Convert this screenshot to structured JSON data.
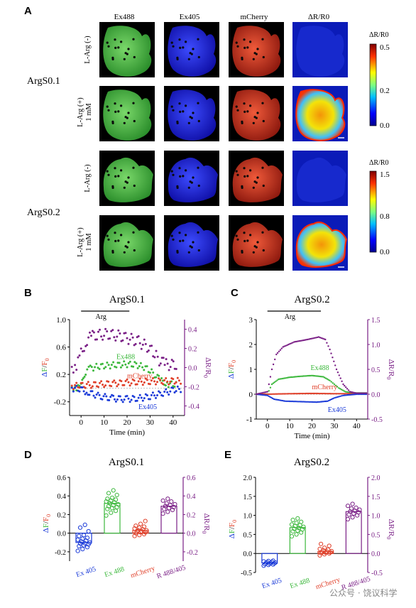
{
  "panel_labels": {
    "A": "A",
    "B": "B",
    "C": "C",
    "D": "D",
    "E": "E"
  },
  "panel_a": {
    "column_headers": [
      "Ex488",
      "Ex405",
      "mCherry",
      "ΔR/R0"
    ],
    "group1": {
      "name": "ArgS0.1",
      "row1_label": "L-Arg (-)",
      "row2_label_line1": "L-Arg (+)",
      "row2_label_line2": "1 mM",
      "colorbar_title": "ΔR/R0",
      "colorbar_ticks": [
        "0.5",
        "0.2",
        "0.0"
      ]
    },
    "group2": {
      "name": "ArgS0.2",
      "row1_label": "L-Arg (-)",
      "row2_label_line1": "L-Arg (+)",
      "row2_label_line2": "1 mM",
      "colorbar_title": "ΔR/R0",
      "colorbar_ticks": [
        "1.5",
        "0.8",
        "0.0"
      ]
    },
    "channel_colors": {
      "Ex488": "#3fb53a",
      "Ex405": "#1f2ee0",
      "mCherry": "#d8301e",
      "ratio": "#1a2bd0"
    }
  },
  "colors": {
    "green": "#3cb83c",
    "blue": "#1a3ad8",
    "red": "#e0402a",
    "purple": "#7a1f86",
    "black": "#000000"
  },
  "chart_data": [
    {
      "panel": "B",
      "type": "scatter",
      "title": "ArgS0.1",
      "xlabel": "Time (min)",
      "ylabel_left": "ΔF/F0",
      "ylabel_right": "ΔR/R0",
      "xlim": [
        -5,
        45
      ],
      "ylim_left": [
        -0.4,
        1.0
      ],
      "ylim_right": [
        -0.5,
        0.5
      ],
      "x_ticks": [
        0,
        10,
        20,
        30,
        40
      ],
      "y_ticks_left": [
        -0.2,
        0.2,
        0.6,
        1.0
      ],
      "y_ticks_right": [
        -0.4,
        -0.2,
        0.0,
        0.2,
        0.4
      ],
      "stimulus": {
        "label": "Arg",
        "start": 0,
        "end": 21
      },
      "series": [
        {
          "name": "Ex488",
          "axis": "left",
          "color": "green",
          "points": [
            [
              -4,
              0.01
            ],
            [
              -2,
              0.0
            ],
            [
              0,
              0.02
            ],
            [
              1,
              0.15
            ],
            [
              2,
              0.24
            ],
            [
              4,
              0.29
            ],
            [
              8,
              0.32
            ],
            [
              12,
              0.33
            ],
            [
              16,
              0.34
            ],
            [
              20,
              0.35
            ],
            [
              24,
              0.34
            ],
            [
              28,
              0.3
            ],
            [
              32,
              0.2
            ],
            [
              35,
              0.1
            ],
            [
              38,
              0.06
            ],
            [
              42,
              0.05
            ]
          ]
        },
        {
          "name": "mCherry",
          "axis": "left",
          "color": "red",
          "points": [
            [
              -4,
              0.03
            ],
            [
              0,
              0.04
            ],
            [
              5,
              0.05
            ],
            [
              10,
              0.06
            ],
            [
              15,
              0.07
            ],
            [
              20,
              0.08
            ],
            [
              25,
              0.09
            ],
            [
              30,
              0.1
            ],
            [
              35,
              0.1
            ],
            [
              40,
              0.1
            ],
            [
              44,
              0.11
            ]
          ]
        },
        {
          "name": "Ex405",
          "axis": "left",
          "color": "blue",
          "points": [
            [
              -4,
              0.0
            ],
            [
              0,
              -0.02
            ],
            [
              3,
              -0.06
            ],
            [
              8,
              -0.12
            ],
            [
              14,
              -0.15
            ],
            [
              20,
              -0.16
            ],
            [
              25,
              -0.15
            ],
            [
              30,
              -0.12
            ],
            [
              35,
              -0.08
            ],
            [
              40,
              -0.03
            ],
            [
              44,
              -0.01
            ]
          ]
        },
        {
          "name": "",
          "axis": "right",
          "color": "purple",
          "points": [
            [
              -4,
              0.0
            ],
            [
              -2,
              0.02
            ],
            [
              0,
              0.14
            ],
            [
              2,
              0.27
            ],
            [
              5,
              0.33
            ],
            [
              10,
              0.35
            ],
            [
              15,
              0.34
            ],
            [
              20,
              0.31
            ],
            [
              25,
              0.27
            ],
            [
              30,
              0.2
            ],
            [
              34,
              0.08
            ],
            [
              37,
              0.03
            ],
            [
              42,
              0.03
            ]
          ]
        }
      ]
    },
    {
      "panel": "C",
      "type": "line",
      "title": "ArgS0.2",
      "xlabel": "Time (min)",
      "ylabel_left": "ΔF/F0",
      "ylabel_right": "ΔR/R0",
      "xlim": [
        -5,
        45
      ],
      "ylim_left": [
        -1,
        3
      ],
      "ylim_right": [
        -0.5,
        1.5
      ],
      "x_ticks": [
        0,
        10,
        20,
        30,
        40
      ],
      "y_ticks_left": [
        -1,
        0,
        1,
        2,
        3
      ],
      "y_ticks_right": [
        -0.5,
        0.0,
        0.5,
        1.0,
        1.5
      ],
      "stimulus": {
        "label": "Arg",
        "start": 0,
        "end": 24
      },
      "series": [
        {
          "name": "Ex488",
          "axis": "left",
          "color": "green",
          "points": [
            [
              -5,
              0
            ],
            [
              0,
              0
            ],
            [
              2,
              0.4
            ],
            [
              5,
              0.6
            ],
            [
              10,
              0.68
            ],
            [
              15,
              0.72
            ],
            [
              20,
              0.75
            ],
            [
              25,
              0.7
            ],
            [
              28,
              0.55
            ],
            [
              32,
              0.25
            ],
            [
              35,
              0.1
            ],
            [
              38,
              0.05
            ],
            [
              45,
              0.05
            ]
          ]
        },
        {
          "name": "mCherry",
          "axis": "left",
          "color": "red",
          "points": [
            [
              -5,
              0
            ],
            [
              0,
              0
            ],
            [
              10,
              0.02
            ],
            [
              20,
              0.03
            ],
            [
              30,
              0.02
            ],
            [
              40,
              0.02
            ],
            [
              45,
              0.02
            ]
          ]
        },
        {
          "name": "Ex405",
          "axis": "left",
          "color": "blue",
          "points": [
            [
              -5,
              0
            ],
            [
              0,
              -0.05
            ],
            [
              3,
              -0.2
            ],
            [
              8,
              -0.28
            ],
            [
              15,
              -0.3
            ],
            [
              22,
              -0.32
            ],
            [
              27,
              -0.28
            ],
            [
              30,
              -0.15
            ],
            [
              34,
              -0.05
            ],
            [
              40,
              0
            ],
            [
              45,
              0
            ]
          ]
        },
        {
          "name": "",
          "axis": "right",
          "color": "purple",
          "points": [
            [
              -5,
              0
            ],
            [
              0,
              0.05
            ],
            [
              2,
              0.5
            ],
            [
              4,
              0.8
            ],
            [
              7,
              0.95
            ],
            [
              12,
              1.05
            ],
            [
              18,
              1.1
            ],
            [
              23,
              1.15
            ],
            [
              26,
              1.1
            ],
            [
              28,
              0.9
            ],
            [
              31,
              0.5
            ],
            [
              34,
              0.2
            ],
            [
              37,
              0.05
            ],
            [
              40,
              0.02
            ],
            [
              45,
              0.02
            ]
          ]
        }
      ]
    },
    {
      "panel": "D",
      "type": "bar",
      "title": "ArgS0.1",
      "categories": [
        "Ex 405",
        "Ex 488",
        "mCherry",
        "R 488/405"
      ],
      "category_colors": [
        "blue",
        "green",
        "red",
        "purple"
      ],
      "ylabel_left": "ΔF/F0",
      "ylabel_right": "ΔR/R0",
      "ylim_left": [
        -0.3,
        0.6
      ],
      "ylim_right": [
        -0.3,
        0.6
      ],
      "y_ticks_left": [
        -0.2,
        0.0,
        0.2,
        0.4,
        0.6
      ],
      "y_ticks_right": [
        -0.2,
        0.0,
        0.2,
        0.4,
        0.6
      ],
      "values": [
        -0.1,
        0.32,
        0.03,
        0.29
      ],
      "points": [
        [
          -0.19,
          -0.17,
          -0.15,
          -0.14,
          -0.13,
          -0.12,
          -0.11,
          -0.11,
          -0.1,
          -0.09,
          -0.08,
          -0.07,
          -0.06,
          -0.05,
          -0.03,
          -0.02,
          0.02,
          0.06,
          0.09
        ],
        [
          0.19,
          0.22,
          0.24,
          0.26,
          0.27,
          0.28,
          0.29,
          0.3,
          0.31,
          0.32,
          0.33,
          0.34,
          0.35,
          0.36,
          0.37,
          0.38,
          0.41,
          0.43,
          0.46
        ],
        [
          -0.03,
          -0.02,
          -0.01,
          0.0,
          0.01,
          0.01,
          0.02,
          0.02,
          0.03,
          0.03,
          0.04,
          0.05,
          0.06,
          0.07,
          0.08,
          0.1,
          0.13
        ],
        [
          0.21,
          0.23,
          0.25,
          0.26,
          0.27,
          0.28,
          0.29,
          0.3,
          0.31,
          0.32,
          0.34,
          0.35,
          0.37
        ]
      ]
    },
    {
      "panel": "E",
      "type": "bar",
      "title": "ArgS0.2",
      "categories": [
        "Ex 405",
        "Ex 488",
        "mCherry",
        "R 488/405"
      ],
      "category_colors": [
        "blue",
        "green",
        "red",
        "purple"
      ],
      "ylabel_left": "ΔF/F0",
      "ylabel_right": "ΔR/R0",
      "ylim_left": [
        -0.5,
        2.0
      ],
      "ylim_right": [
        -0.5,
        2.0
      ],
      "y_ticks_left": [
        -0.5,
        0.0,
        0.5,
        1.0,
        1.5,
        2.0
      ],
      "y_ticks_right": [
        -0.5,
        0.0,
        0.5,
        1.0,
        1.5,
        2.0
      ],
      "values": [
        -0.25,
        0.68,
        0.05,
        1.1
      ],
      "points": [
        [
          -0.32,
          -0.3,
          -0.29,
          -0.28,
          -0.27,
          -0.26,
          -0.25,
          -0.25,
          -0.24,
          -0.23,
          -0.22,
          -0.21,
          -0.2,
          -0.19
        ],
        [
          0.45,
          0.5,
          0.55,
          0.58,
          0.6,
          0.63,
          0.65,
          0.67,
          0.7,
          0.72,
          0.74,
          0.76,
          0.8,
          0.83,
          0.88,
          0.92
        ],
        [
          -0.05,
          -0.02,
          0.0,
          0.01,
          0.02,
          0.03,
          0.04,
          0.05,
          0.06,
          0.08,
          0.1,
          0.12,
          0.15,
          0.2,
          0.25
        ],
        [
          0.9,
          0.95,
          1.0,
          1.02,
          1.05,
          1.08,
          1.1,
          1.12,
          1.15,
          1.18,
          1.2,
          1.25,
          1.3
        ]
      ]
    }
  ],
  "watermark": "公众号 · 饶议科学"
}
